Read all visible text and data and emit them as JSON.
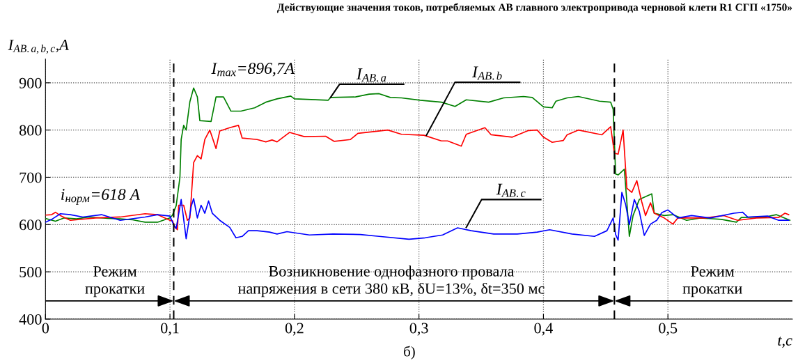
{
  "chart_data": {
    "type": "line",
    "title": "Действующие значения токов, потребляемых АВ главного электропривода черновой клети R1 СГП «1750»",
    "ylabel": "I$_{AB.a,b,c}$,A",
    "xlabel": "t,c",
    "xlim": [
      0,
      0.6
    ],
    "ylim": [
      400,
      950
    ],
    "xticks": [
      0,
      {
        "value": 0.1,
        "label": "0,1"
      },
      {
        "value": 0.2,
        "label": "0,2"
      },
      {
        "value": 0.3,
        "label": "0,3"
      },
      {
        "value": 0.4,
        "label": "0,4"
      },
      {
        "value": 0.5,
        "label": "0,5"
      }
    ],
    "yticks": [
      400,
      500,
      600,
      700,
      800,
      900
    ],
    "grid": true,
    "line_style": "solid",
    "marker": "none",
    "ref_lines": [
      {
        "axis": "x",
        "value": 0.103,
        "color": "#000000",
        "line_style": "dashed"
      },
      {
        "axis": "x",
        "value": 0.457,
        "color": "#000000",
        "line_style": "dashed"
      }
    ],
    "series": [
      {
        "color": "#008000",
        "x": [
          0,
          0.008,
          0.015,
          0.025,
          0.035,
          0.05,
          0.06,
          0.07,
          0.08,
          0.09,
          0.1,
          0.102,
          0.105,
          0.108,
          0.109,
          0.111,
          0.113,
          0.116,
          0.119,
          0.122,
          0.124,
          0.133,
          0.137,
          0.143,
          0.149,
          0.157,
          0.168,
          0.177,
          0.186,
          0.197,
          0.2,
          0.227,
          0.229,
          0.249,
          0.26,
          0.268,
          0.277,
          0.286,
          0.301,
          0.318,
          0.329,
          0.338,
          0.356,
          0.368,
          0.384,
          0.391,
          0.4,
          0.407,
          0.41,
          0.419,
          0.428,
          0.445,
          0.454,
          0.456,
          0.458,
          0.46,
          0.465,
          0.467,
          0.469,
          0.472,
          0.477,
          0.487,
          0.489,
          0.497,
          0.504,
          0.515,
          0.526,
          0.543,
          0.555,
          0.559,
          0.578,
          0.587,
          0.598
        ],
        "values": [
          613,
          607,
          614,
          612,
          616,
          613,
          612,
          610,
          605,
          605,
          614,
          620,
          640,
          700,
          780,
          810,
          800,
          860,
          889,
          870,
          820,
          818,
          870,
          870,
          840,
          840,
          847,
          859,
          866,
          872,
          866,
          863,
          869,
          870,
          876,
          877,
          869,
          868,
          863,
          859,
          850,
          864,
          859,
          868,
          871,
          869,
          849,
          847,
          861,
          868,
          871,
          861,
          859,
          844,
          707,
          705,
          717,
          648,
          575,
          619,
          653,
          665,
          624,
          619,
          621,
          609,
          614,
          611,
          605,
          615,
          616,
          621,
          609
        ]
      },
      {
        "color": "#ff0000",
        "x": [
          0,
          0.005,
          0.008,
          0.012,
          0.02,
          0.04,
          0.06,
          0.08,
          0.09,
          0.1,
          0.102,
          0.104,
          0.106,
          0.107,
          0.111,
          0.114,
          0.116,
          0.119,
          0.122,
          0.125,
          0.128,
          0.132,
          0.137,
          0.14,
          0.148,
          0.155,
          0.158,
          0.17,
          0.177,
          0.182,
          0.186,
          0.196,
          0.208,
          0.225,
          0.232,
          0.245,
          0.251,
          0.275,
          0.286,
          0.304,
          0.318,
          0.323,
          0.334,
          0.338,
          0.353,
          0.358,
          0.375,
          0.388,
          0.395,
          0.4,
          0.407,
          0.416,
          0.419,
          0.428,
          0.447,
          0.454,
          0.457,
          0.46,
          0.464,
          0.467,
          0.471,
          0.475,
          0.479,
          0.482,
          0.486,
          0.489,
          0.497,
          0.504,
          0.508,
          0.519,
          0.53,
          0.545,
          0.556,
          0.571,
          0.589,
          0.594,
          0.597
        ],
        "values": [
          620,
          621,
          626,
          619,
          609,
          614,
          616,
          623,
          621,
          609,
          608,
          594,
          589,
          641,
          641,
          609,
          614,
          731,
          746,
          739,
          780,
          800,
          761,
          798,
          805,
          810,
          783,
          780,
          775,
          779,
          775,
          795,
          786,
          787,
          776,
          780,
          793,
          800,
          791,
          789,
          777,
          777,
          766,
          791,
          805,
          790,
          785,
          799,
          800,
          785,
          774,
          778,
          790,
          800,
          790,
          807,
          751,
          749,
          800,
          677,
          668,
          693,
          648,
          619,
          646,
          624,
          614,
          601,
          614,
          614,
          614,
          619,
          609,
          614,
          615,
          624,
          621
        ]
      },
      {
        "color": "#0000ff",
        "x": [
          0,
          0.005,
          0.012,
          0.02,
          0.03,
          0.045,
          0.06,
          0.08,
          0.09,
          0.1,
          0.103,
          0.105,
          0.109,
          0.113,
          0.117,
          0.119,
          0.122,
          0.125,
          0.128,
          0.131,
          0.134,
          0.14,
          0.148,
          0.153,
          0.158,
          0.163,
          0.17,
          0.18,
          0.186,
          0.194,
          0.212,
          0.231,
          0.253,
          0.268,
          0.292,
          0.305,
          0.319,
          0.331,
          0.342,
          0.36,
          0.379,
          0.395,
          0.405,
          0.423,
          0.441,
          0.451,
          0.456,
          0.458,
          0.46,
          0.463,
          0.466,
          0.469,
          0.473,
          0.477,
          0.481,
          0.486,
          0.491,
          0.495,
          0.5,
          0.508,
          0.519,
          0.534,
          0.553,
          0.56,
          0.564,
          0.58,
          0.589,
          0.597
        ],
        "values": [
          605,
          611,
          623,
          621,
          616,
          621,
          609,
          616,
          621,
          618,
          599,
          592,
          653,
          570,
          638,
          655,
          614,
          641,
          624,
          650,
          624,
          609,
          594,
          572,
          575,
          587,
          587,
          584,
          580,
          585,
          578,
          580,
          579,
          575,
          569,
          572,
          578,
          593,
          587,
          580,
          580,
          584,
          589,
          580,
          575,
          587,
          614,
          579,
          567,
          668,
          643,
          600,
          653,
          628,
          577,
          601,
          609,
          625,
          631,
          614,
          619,
          614,
          624,
          626,
          616,
          618,
          609,
          609
        ]
      }
    ],
    "annotations": [
      "i$_{норм}$=618 A",
      "I$_{max}$=896,7A",
      {
        "text": "I$_{AB.a}$",
        "x": 0.229,
        "y": 869
      },
      {
        "text": "I$_{AB.b}$",
        "x": 0.306,
        "y": 789
      },
      {
        "text": "I$_{AB.c}$",
        "x": 0.338,
        "y": 594
      },
      "Режим\nпрокатки",
      "Возникновение однофазного провала\nнапряжения в сети 380 кВ, δU=13%, δt=350 мс",
      "Режим\nпрокатки",
      "б)"
    ]
  }
}
